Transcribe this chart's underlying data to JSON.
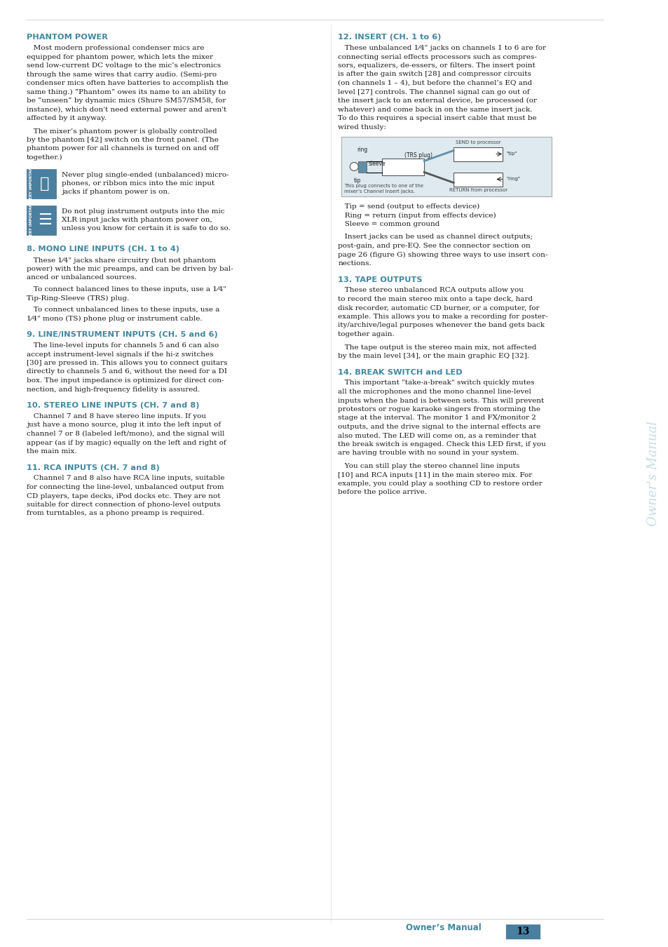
{
  "page_bg": "#ffffff",
  "header_color": "#4287a0",
  "text_color": "#1a1a1a",
  "sidebar_text_color": "#c5dce6",
  "page_number": "13",
  "page_number_bg": "#4a7fa0",
  "sidebar_label": "Owner's Manual",
  "footer_label": "Owner’s Manual",
  "col1_sections": [
    {
      "heading": "PHANTOM POWER",
      "numbered": false,
      "body_paragraphs": [
        "   Most modern professional condenser mics are equipped for phantom power, which lets the mixer send low-current DC voltage to the mic’s electronics through the same wires that carry audio. (Semi-pro condenser mics often have batteries to accomplish the same thing.) “Phantom” owes its name to an ability to be “unseen” by dynamic mics (Shure SM57/SM58, for instance), which don't need external power and aren't affected by it anyway.",
        "   The mixer’s phantom power is globally controlled by the phantom [42] switch on the front panel. (The phantom power for all channels is turned on and off together.)"
      ],
      "warnings": [
        "Never plug single-ended (unbalanced) micro-\nphones, or ribbon mics into the mic input\njacks if phantom power is on.",
        "Do not plug instrument outputs into the mic\nXLR input jacks with phantom power on,\nunless you know for certain it is safe to do so."
      ]
    },
    {
      "heading": "8. MONO LINE INPUTS (CH. 1 to 4)",
      "numbered": true,
      "body_paragraphs": [
        "   These 1⁄4\" jacks share circuitry (but not phantom power) with the mic preamps, and can be driven by balanced or unbalanced sources.",
        "   To connect balanced lines to these inputs, use a 1⁄4\" Tip-Ring-Sleeve (TRS) plug.",
        "   To connect unbalanced lines to these inputs, use a 1⁄4\" mono (TS) phone plug or instrument cable."
      ],
      "warnings": []
    },
    {
      "heading": "9. LINE/INSTRUMENT INPUTS (CH. 5 and 6)",
      "numbered": true,
      "body_paragraphs": [
        "   The line-level inputs for channels 5 and 6 can also accept instrument-level signals if the hi-z switches [30] are pressed in. This allows you to connect guitars directly to channels 5 and 6, without the need for a DI box. The input impedance is optimized for direct connection, and high-frequency fidelity is assured."
      ],
      "warnings": []
    },
    {
      "heading": "10. STEREO LINE INPUTS (CH. 7 and 8)",
      "numbered": true,
      "body_paragraphs": [
        "   Channel 7 and 8 have stereo line inputs. If you just have a mono source, plug it into the left input of channel 7 or 8 (labeled left/mono), and the signal will appear (as if by magic) equally on the left and right of the main mix."
      ],
      "warnings": []
    },
    {
      "heading": "11. RCA INPUTS (CH. 7 and 8)",
      "numbered": true,
      "body_paragraphs": [
        "   Channel 7 and 8 also have RCA line inputs, suitable for connecting the line-level, unbalanced output from CD players, tape decks, iPod docks etc. They are not suitable for direct connection of phono-level outputs from turntables, as a phono preamp is required."
      ],
      "warnings": []
    }
  ],
  "col2_sections": [
    {
      "heading": "12. INSERT (CH. 1 to 6)",
      "numbered": true,
      "body_paragraphs": [
        "   These unbalanced 1⁄4\" jacks on channels 1 to 6 are for connecting serial effects processors such as compressors, equalizers, de-essers, or filters. The insert point is after the gain switch [28] and compressor circuits (on channels 1 – 4), but before the channel’s EQ and level [27] controls. The channel signal can go out of the insert jack to an external device, be processed (or whatever) and come back in on the same insert jack. To do this requires a special insert cable that must be wired thusly:"
      ],
      "has_diagram": true,
      "tip_lines": [
        "   Tip = send (output to effects device)",
        "   Ring = return (input from effects device)",
        "   Sleeve = common ground"
      ],
      "after_diagram_para": "   Insert jacks can be used as channel direct outputs; post-gain, and pre-EQ. See the connector section on page 26 (figure G) showing three ways to use insert connections.",
      "warnings": []
    },
    {
      "heading": "13. TAPE OUTPUTS",
      "numbered": true,
      "body_paragraphs": [
        "   These stereo unbalanced RCA outputs allow you to record the main stereo mix onto a tape deck, hard disk recorder, automatic CD burner, or a computer, for example. This allows you to make a recording for posterity/archive/legal purposes whenever the band gets back together again.",
        "   The tape output is the stereo main mix, not affected by the main level [34], or the main graphic EQ [32]."
      ],
      "warnings": []
    },
    {
      "heading": "14. BREAK SWITCH and LED",
      "numbered": true,
      "body_paragraphs": [
        "   This important \"take-a-break\" switch quickly mutes all the microphones and the mono channel line-level inputs when the band is between sets. This will prevent protestors or rogue karaoke singers from storming the stage at the interval. The monitor 1 and FX/monitor 2 outputs, and the drive signal to the internal effects are also muted. The LED will come on, as a reminder that the break switch is engaged. Check this LED first, if you are having trouble with no sound in your system.",
        "   You can still play the stereo channel line inputs [10] and RCA inputs [11] in the main stereo mix. For example, you could play a soothing CD to restore order before the police arrive."
      ],
      "warnings": []
    }
  ]
}
